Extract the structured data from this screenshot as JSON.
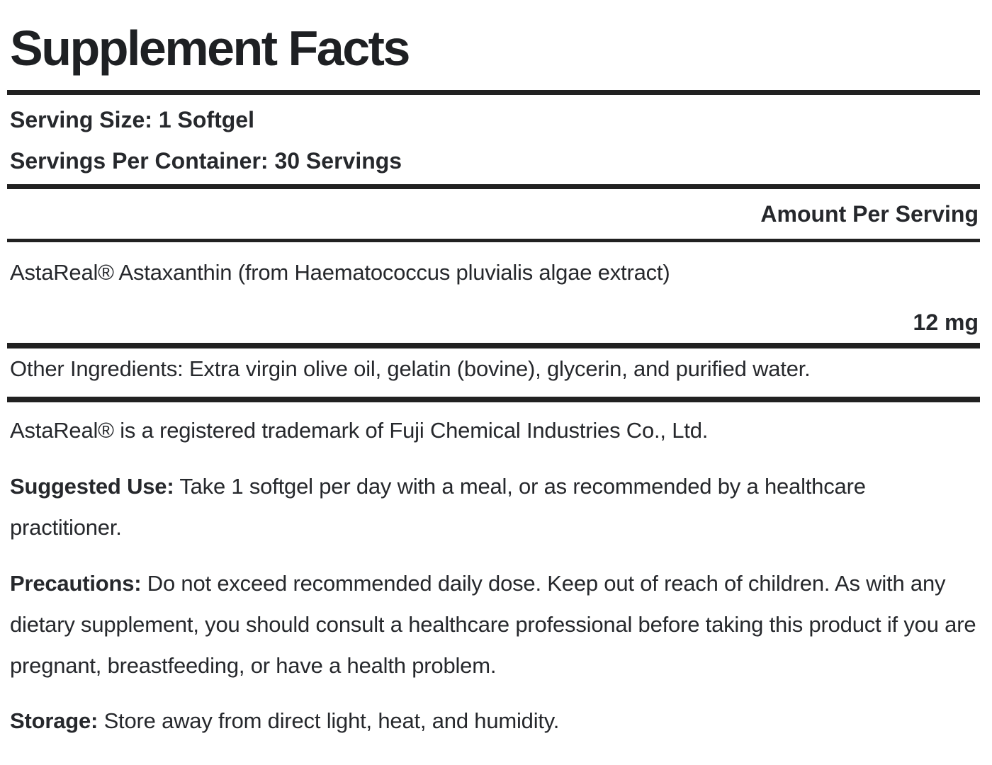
{
  "label": {
    "title": "Supplement Facts",
    "serving_size": {
      "label": "Serving Size:",
      "value": "1 Softgel"
    },
    "servings_per_container": {
      "label": "Servings Per Container:",
      "value": "30 Servings"
    },
    "amount_per_serving_header": "Amount Per Serving",
    "ingredient_row": {
      "name": "AstaReal® Astaxanthin (from Haematococcus pluvialis algae extract)",
      "amount": "12 mg"
    },
    "other_ingredients": "Other Ingredients: Extra virgin olive oil, gelatin (bovine), glycerin, and purified water.",
    "trademark_note": "AstaReal® is a registered trademark of Fuji Chemical Industries Co., Ltd.",
    "suggested_use": {
      "label": "Suggested Use:",
      "text": " Take 1 softgel per day with a meal, or as recommended by a healthcare practitioner."
    },
    "precautions": {
      "label": "Precautions:",
      "text": " Do not exceed recommended daily dose. Keep out of reach of children. As with any dietary supplement, you should consult a healthcare professional before taking this product if you are pregnant, breastfeeding, or have a health problem."
    },
    "storage": {
      "label": "Storage:",
      "text": " Store away from direct light, heat, and humidity."
    }
  },
  "colors": {
    "background": "#ffffff",
    "text": "#26282c",
    "title_text": "#1e2023",
    "rule": "#212121"
  }
}
